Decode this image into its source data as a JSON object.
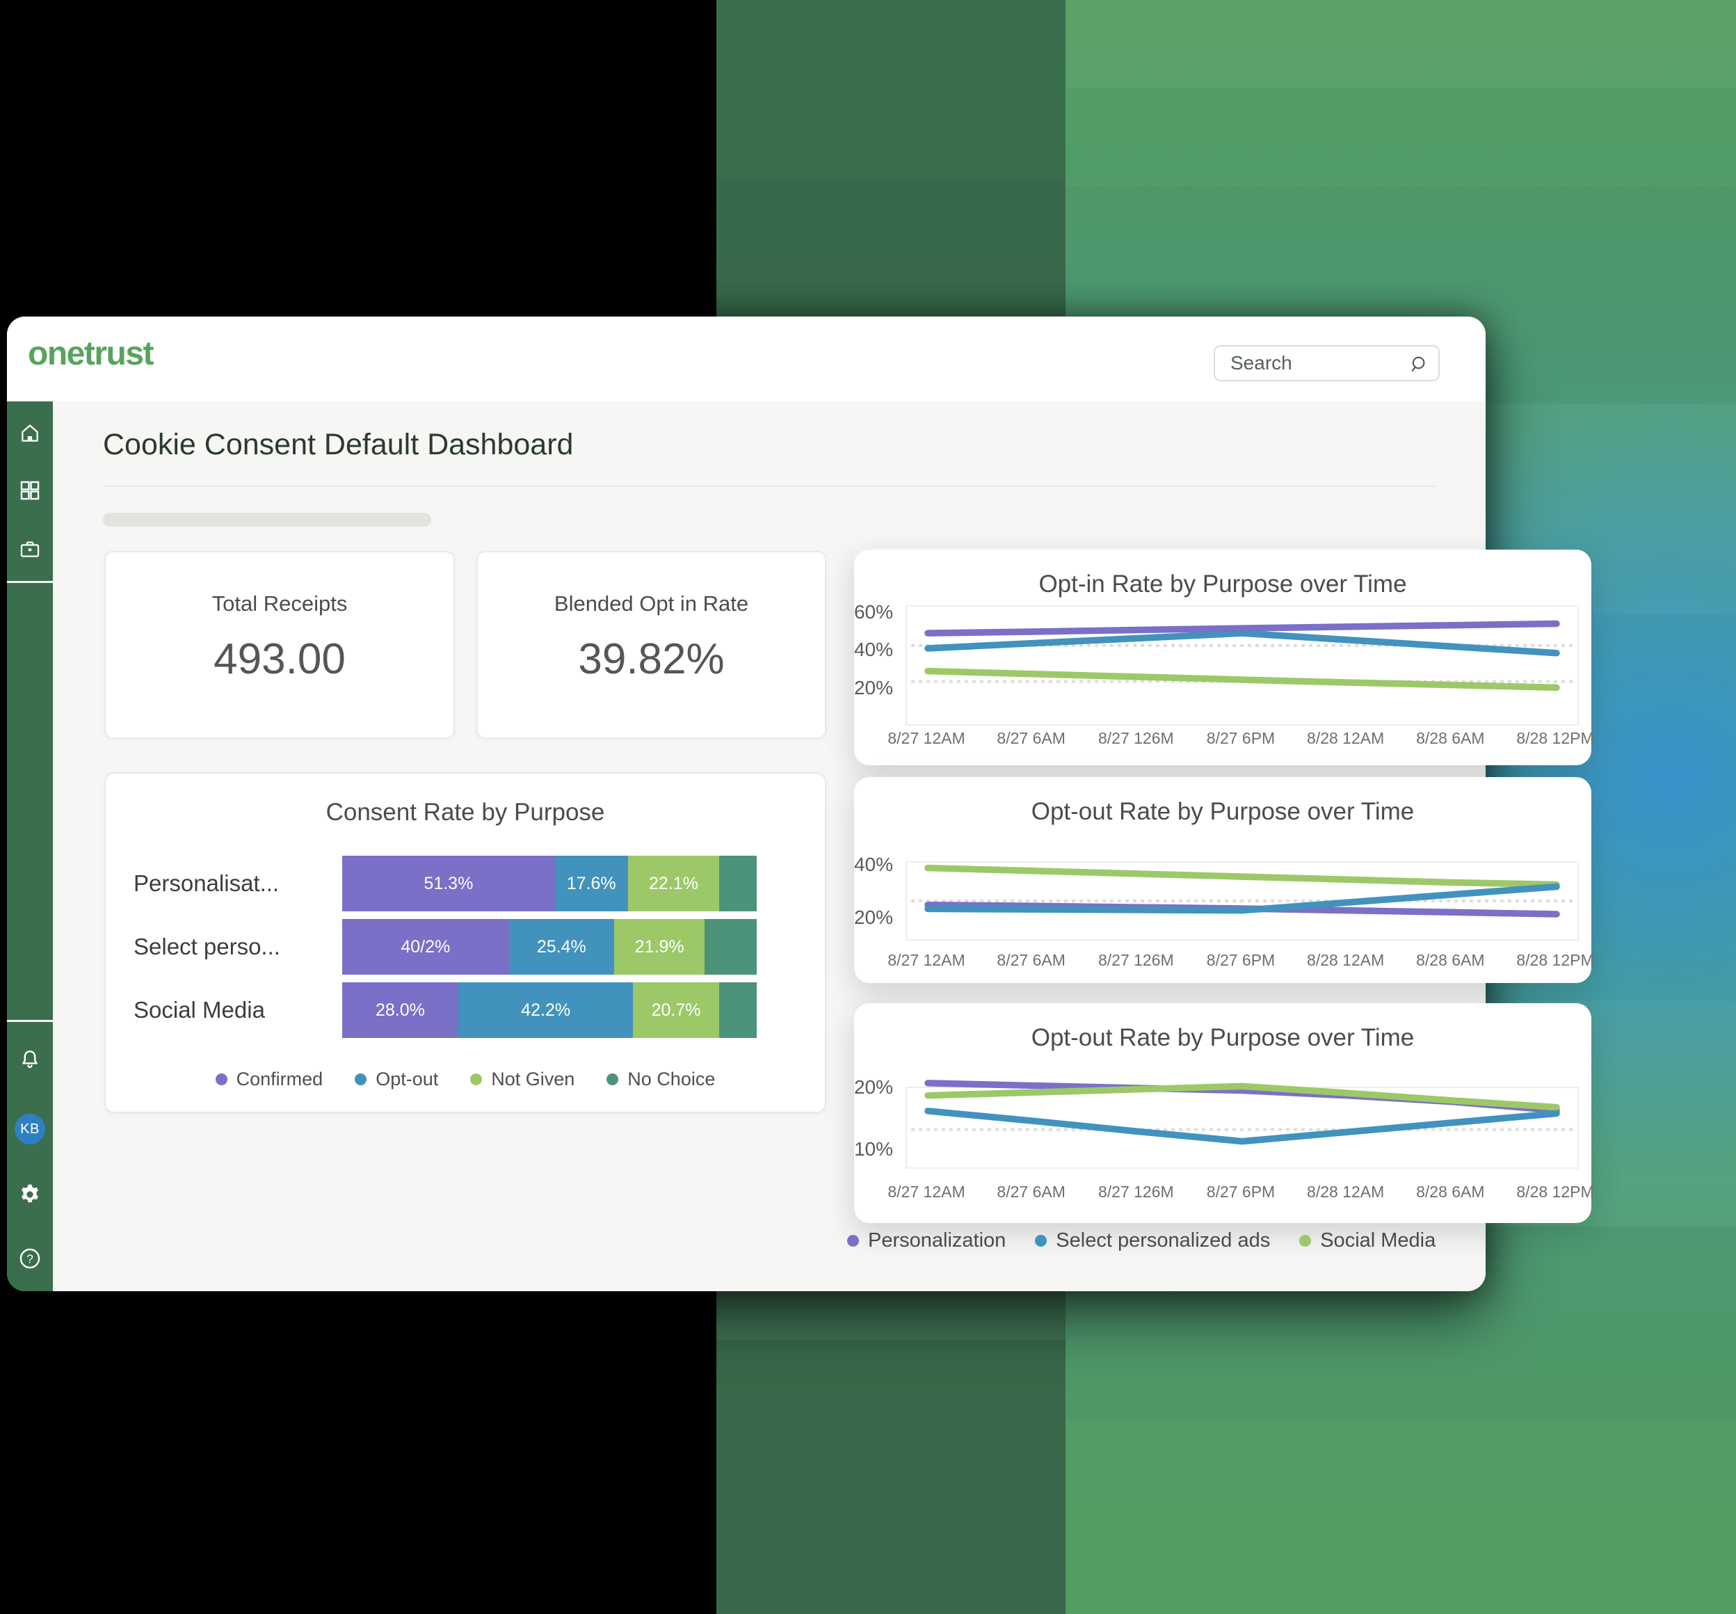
{
  "palette": {
    "confirmed": "#7a70c8",
    "optout": "#4193bd",
    "notgiven": "#9dc868",
    "nochoice": "#4d9379",
    "personalization": "#7a70c8",
    "select_ads": "#4193bd",
    "social_media": "#9dc868"
  },
  "header": {
    "logo_text": "onetrust",
    "search_placeholder": "Search"
  },
  "sidebar": {
    "avatar_initials": "KB"
  },
  "main": {
    "title": "Cookie Consent Default Dashboard"
  },
  "stats": [
    {
      "label": "Total Receipts",
      "value": "493.00"
    },
    {
      "label": "Blended Opt in Rate",
      "value": "39.82%"
    }
  ],
  "bar_legend": [
    {
      "key": "confirmed",
      "label": "Confirmed"
    },
    {
      "key": "optout",
      "label": "Opt-out"
    },
    {
      "key": "notgiven",
      "label": "Not Given"
    },
    {
      "key": "nochoice",
      "label": "No Choice"
    }
  ],
  "series_legend": [
    {
      "key": "personalization",
      "label": "Personalization"
    },
    {
      "key": "select_ads",
      "label": "Select personalized ads"
    },
    {
      "key": "social_media",
      "label": "Social Media"
    }
  ],
  "chart_data": [
    {
      "type": "bar",
      "title": "Consent Rate by Purpose",
      "stacked": true,
      "unit": "%",
      "legend": [
        "Confirmed",
        "Opt-out",
        "Not Given",
        "No Choice"
      ],
      "rows": [
        {
          "label": "Personalisat...",
          "segments": [
            {
              "key": "confirmed",
              "value": 51.3,
              "label": "51.3%"
            },
            {
              "key": "optout",
              "value": 17.6,
              "label": "17.6%"
            },
            {
              "key": "notgiven",
              "value": 22.1,
              "label": "22.1%"
            },
            {
              "key": "nochoice",
              "value": 9.0,
              "label": ""
            }
          ]
        },
        {
          "label": "Select perso...",
          "segments": [
            {
              "key": "confirmed",
              "value": 40.2,
              "label": "40/2%"
            },
            {
              "key": "optout",
              "value": 25.4,
              "label": "25.4%"
            },
            {
              "key": "notgiven",
              "value": 21.9,
              "label": "21.9%"
            },
            {
              "key": "nochoice",
              "value": 12.5,
              "label": ""
            }
          ]
        },
        {
          "label": "Social Media",
          "segments": [
            {
              "key": "confirmed",
              "value": 28.0,
              "label": "28.0%"
            },
            {
              "key": "optout",
              "value": 42.2,
              "label": "42.2%"
            },
            {
              "key": "notgiven",
              "value": 20.7,
              "label": "20.7%"
            },
            {
              "key": "nochoice",
              "value": 9.1,
              "label": ""
            }
          ]
        }
      ]
    },
    {
      "type": "line",
      "title": "Opt-in Rate by Purpose over Time",
      "x": [
        "8/27 12AM",
        "8/27 6AM",
        "8/27 126M",
        "8/27 6PM",
        "8/28 12AM",
        "8/28 6AM",
        "8/28 12PM"
      ],
      "ylim": [
        2,
        64
      ],
      "yticks": [
        60,
        40,
        20
      ],
      "reflines": [
        43.5,
        24.5
      ],
      "legend_position": "none",
      "grid": "dotted-reference-lines",
      "series": [
        {
          "key": "select_ads",
          "name": "Select personalized ads",
          "values": [
            42,
            44.7,
            47.3,
            50,
            46.5,
            43,
            39.5
          ]
        },
        {
          "key": "social_media",
          "name": "Social Media",
          "values": [
            30,
            28.5,
            27,
            25.5,
            24,
            22.7,
            21.3
          ]
        },
        {
          "key": "personalization",
          "name": "Personalization",
          "values": [
            50,
            50.8,
            51.7,
            52.6,
            53.4,
            54.2,
            55
          ]
        }
      ]
    },
    {
      "type": "line",
      "title": "Opt-out Rate by Purpose over Time",
      "x": [
        "8/27 12AM",
        "8/27 6AM",
        "8/27 126M",
        "8/27 6PM",
        "8/28 12AM",
        "8/28 6AM",
        "8/28 12PM"
      ],
      "ylim": [
        12.5,
        41.5
      ],
      "yticks": [
        40,
        20
      ],
      "reflines": [
        27
      ],
      "legend_position": "none",
      "grid": "dotted-reference-lines",
      "series": [
        {
          "key": "personalization",
          "name": "Personalization",
          "values": [
            25.5,
            25.1,
            24.6,
            24.1,
            23.4,
            22.7,
            22
          ]
        },
        {
          "key": "social_media",
          "name": "Social Media",
          "values": [
            39.5,
            38.4,
            37.3,
            36.2,
            35.1,
            34,
            33.2
          ]
        },
        {
          "key": "select_ads",
          "name": "Select personalized ads",
          "values": [
            24,
            23.8,
            23.6,
            23.4,
            26.4,
            29.4,
            32.4
          ]
        }
      ]
    },
    {
      "type": "line",
      "title": "Opt-out Rate by Purpose over Time",
      "x": [
        "8/27 12AM",
        "8/27 6AM",
        "8/27 126M",
        "8/27 6PM",
        "8/28 12AM",
        "8/28 6AM",
        "8/28 12PM"
      ],
      "ylim": [
        7.4,
        20.2
      ],
      "yticks": [
        20,
        10
      ],
      "reflines": [
        13.5
      ],
      "legend_position": "bottom-left-outside",
      "grid": "dotted-reference-lines",
      "series": [
        {
          "key": "personalization",
          "name": "Personalization",
          "values": [
            21,
            20.6,
            20.2,
            19.8,
            19,
            18,
            16.6
          ]
        },
        {
          "key": "social_media",
          "name": "Social Media",
          "values": [
            19,
            19.5,
            20,
            20.5,
            19.4,
            18.2,
            17.1
          ]
        },
        {
          "key": "select_ads",
          "name": "Select personalized ads",
          "values": [
            16.5,
            14.9,
            13.2,
            11.6,
            13.1,
            14.6,
            16.1
          ]
        }
      ]
    }
  ]
}
